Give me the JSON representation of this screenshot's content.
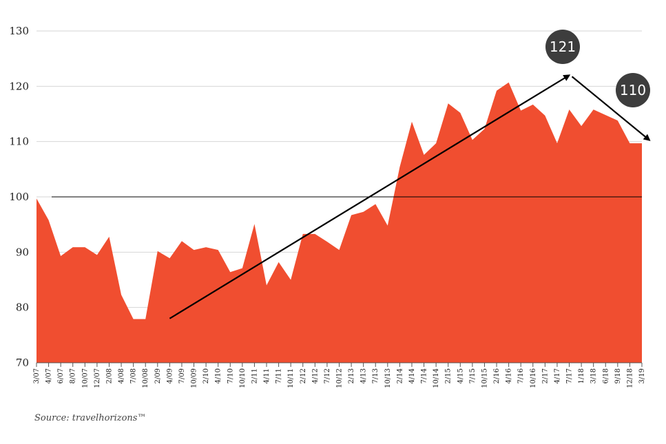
{
  "chart_data": {
    "type": "area",
    "x": [
      "3/07",
      "4/07",
      "6/07",
      "8/07",
      "10/07",
      "12/07",
      "2/08",
      "4/08",
      "7/08",
      "10/08",
      "2/09",
      "4/09",
      "7/09",
      "10/09",
      "2/10",
      "4/10",
      "7/10",
      "10/10",
      "2/11",
      "4/11",
      "7/11",
      "10/11",
      "2/12",
      "4/12",
      "7/12",
      "10/12",
      "2/13",
      "4/13",
      "7/13",
      "10/13",
      "2/14",
      "4/14",
      "7/14",
      "10/14",
      "2/15",
      "4/15",
      "7/15",
      "10/15",
      "2/16",
      "4/16",
      "7/16",
      "10/16",
      "2/17",
      "4/17",
      "7/17",
      "1/18",
      "3/18",
      "6/18",
      "9/18",
      "12/18",
      "3/19"
    ],
    "values": [
      99.7,
      95.8,
      89.3,
      90.9,
      90.9,
      89.5,
      92.8,
      82.3,
      77.9,
      77.9,
      90.2,
      88.9,
      92.0,
      90.4,
      90.9,
      90.4,
      86.4,
      87.1,
      95.1,
      84.0,
      88.2,
      85.0,
      93.3,
      93.3,
      91.9,
      90.4,
      96.7,
      97.3,
      98.7,
      94.8,
      105.4,
      113.6,
      107.6,
      109.7,
      116.9,
      115.2,
      110.3,
      112.3,
      119.2,
      120.7,
      115.6,
      116.7,
      114.7,
      109.7,
      115.8,
      112.8,
      115.8,
      114.8,
      113.8,
      109.7,
      109.7
    ],
    "ylim": [
      70,
      130
    ],
    "yticks": [
      70,
      80,
      90,
      100,
      110,
      120,
      130
    ],
    "reference_line": 100,
    "grid": true,
    "fill_color": "#f04e30",
    "annotations": {
      "trend_up": {
        "from": [
          "4/09",
          78
        ],
        "to": [
          "7/17",
          122
        ]
      },
      "trend_down": {
        "from": [
          "7/17",
          122
        ],
        "to": [
          "3/19",
          111
        ]
      },
      "badges": [
        {
          "text": "121",
          "color": "#3d3d3d"
        },
        {
          "text": "110",
          "color": "#3d3d3d"
        }
      ]
    }
  },
  "source": "Source: travelhorizons™"
}
